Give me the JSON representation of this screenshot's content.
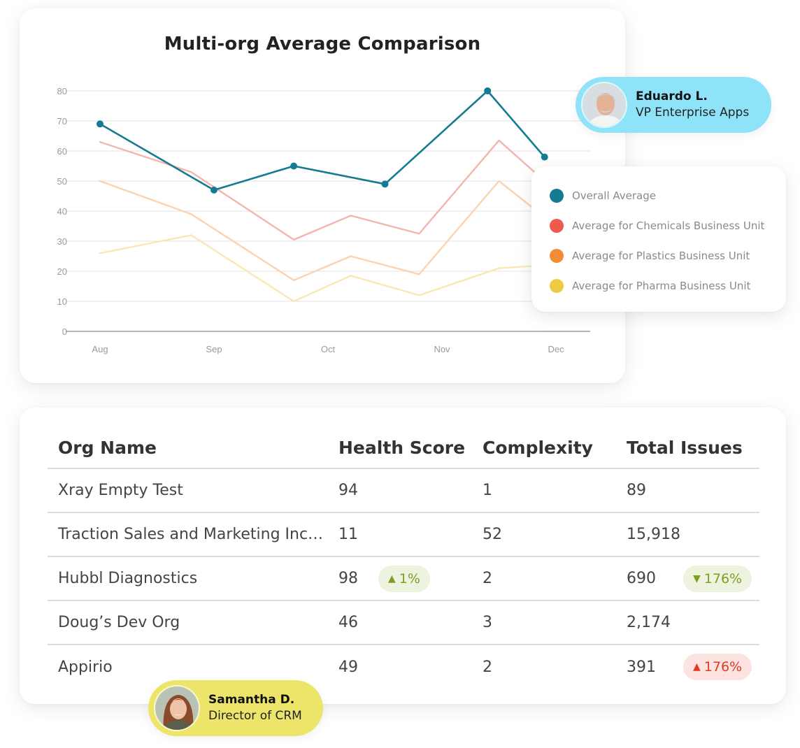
{
  "chart_data": {
    "type": "line",
    "title": "Multi-org Average Comparison",
    "xlabel": "",
    "ylabel": "",
    "x_tick_labels": [
      "Aug",
      "Sep",
      "Oct",
      "Nov",
      "Dec"
    ],
    "y_ticks": [
      0,
      10,
      20,
      30,
      40,
      50,
      60,
      70,
      80
    ],
    "ylim": [
      0,
      80
    ],
    "grid": true,
    "legend_position": "right",
    "series": [
      {
        "name": "Overall Average",
        "color": "#147c92",
        "markers": true,
        "points": [
          [
            0,
            69
          ],
          [
            1,
            47
          ],
          [
            1.7,
            55
          ],
          [
            2.5,
            49
          ],
          [
            3.4,
            80
          ],
          [
            3.9,
            58
          ]
        ]
      },
      {
        "name": "Average for Chemicals Business Unit",
        "color": "#f5b5ae",
        "markers": false,
        "points": [
          [
            0,
            63
          ],
          [
            0.8,
            53
          ],
          [
            1.7,
            30.5
          ],
          [
            2.2,
            38.5
          ],
          [
            2.8,
            32.5
          ],
          [
            3.5,
            63.5
          ],
          [
            3.9,
            50
          ]
        ]
      },
      {
        "name": "Average for Plastics Business Unit",
        "color": "#fbd3b0",
        "markers": false,
        "points": [
          [
            0,
            50
          ],
          [
            0.8,
            39
          ],
          [
            1.7,
            17
          ],
          [
            2.2,
            25
          ],
          [
            2.8,
            19
          ],
          [
            3.5,
            50
          ],
          [
            3.9,
            38
          ]
        ]
      },
      {
        "name": "Average for Pharma Business Unit",
        "color": "#fae8b3",
        "markers": false,
        "points": [
          [
            0,
            26
          ],
          [
            0.8,
            32
          ],
          [
            1.7,
            10
          ],
          [
            2.2,
            18.5
          ],
          [
            2.8,
            12
          ],
          [
            3.5,
            21
          ],
          [
            3.9,
            22
          ]
        ]
      }
    ]
  },
  "legend": [
    {
      "label": "Overall Average",
      "color": "#147c92"
    },
    {
      "label": "Average for Chemicals Business Unit",
      "color": "#ee5a4d"
    },
    {
      "label": "Average for Plastics Business Unit",
      "color": "#f28c35"
    },
    {
      "label": "Average for Pharma Business Unit",
      "color": "#efcb45"
    }
  ],
  "people": {
    "top": {
      "name": "Eduardo L.",
      "role": "VP Enterprise Apps"
    },
    "bottom": {
      "name": "Samantha D.",
      "role": "Director of CRM"
    }
  },
  "table": {
    "columns": [
      "Org Name",
      "Health Score",
      "Complexity",
      "Total Issues"
    ],
    "rows": [
      {
        "org": "Xray Empty Test",
        "health": "94",
        "complexity": "1",
        "issues": "89"
      },
      {
        "org": "Traction Sales and Marketing Inc…",
        "health": "11",
        "complexity": "52",
        "issues": "15,918"
      },
      {
        "org": "Hubbl Diagnostics",
        "health": "98",
        "complexity": "2",
        "issues": "690"
      },
      {
        "org": "Doug’s Dev Org",
        "health": "46",
        "complexity": "3",
        "issues": "2,174"
      },
      {
        "org": "Appirio",
        "health": "49",
        "complexity": "2",
        "issues": "391"
      }
    ],
    "badges": {
      "hubbl_health": {
        "arrow": "▲",
        "text": "1%",
        "tone": "positive"
      },
      "hubbl_issues": {
        "arrow": "▼",
        "text": "176%",
        "tone": "positive"
      },
      "appirio_issues": {
        "arrow": "▲",
        "text": "176%",
        "tone": "negative"
      }
    }
  }
}
